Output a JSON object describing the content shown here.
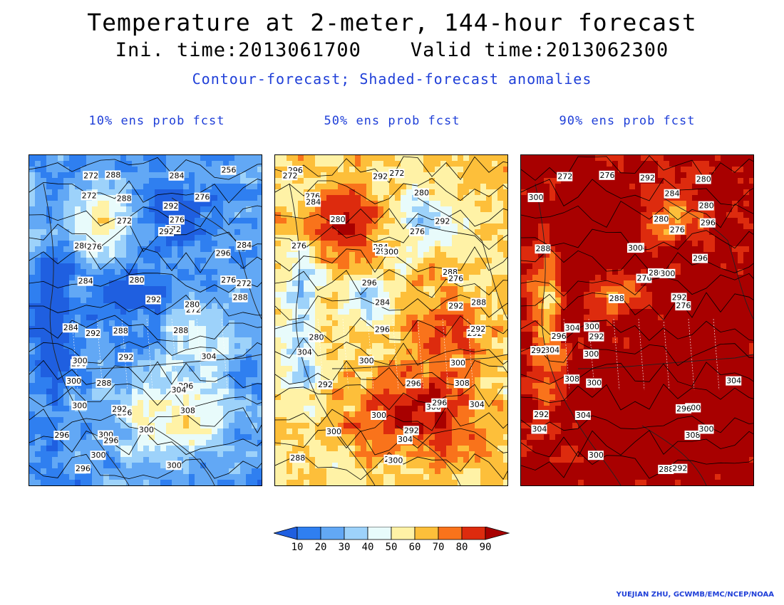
{
  "header": {
    "title": "Temperature at 2-meter, 144-hour forecast",
    "subtitle": "Ini. time:2013061700    Valid time:2013062300",
    "description": "Contour-forecast; Shaded-forecast anomalies"
  },
  "panels": [
    {
      "label": "10% ens prob fcst",
      "shading_bias": -0.28,
      "contour_labels": [
        "288",
        "272",
        "256",
        "284",
        "272",
        "292",
        "288",
        "276",
        "272",
        "276",
        "272",
        "292",
        "296",
        "280",
        "276",
        "284",
        "272",
        "276",
        "284",
        "280",
        "288",
        "292",
        "272",
        "280",
        "288",
        "284",
        "288",
        "292",
        "296",
        "292",
        "300",
        "304",
        "296",
        "300",
        "304",
        "288",
        "300",
        "308",
        "296",
        "292",
        "300",
        "300",
        "296",
        "296",
        "296",
        "300",
        "300"
      ]
    },
    {
      "label": "50% ens prob fcst",
      "shading_bias": 0.1,
      "contour_labels": [
        "292",
        "296",
        "272",
        "272",
        "276",
        "280",
        "284",
        "280",
        "276",
        "292",
        "284",
        "276",
        "296",
        "300",
        "296",
        "288",
        "276",
        "292",
        "284",
        "288",
        "280",
        "292",
        "292",
        "296",
        "300",
        "304",
        "300",
        "296",
        "292",
        "308",
        "300",
        "304",
        "296",
        "300",
        "300",
        "304",
        "292",
        "296",
        "300",
        "288"
      ]
    },
    {
      "label": "90% ens prob fcst",
      "shading_bias": 0.45,
      "contour_labels": [
        "292",
        "280",
        "272",
        "276",
        "300",
        "284",
        "280",
        "276",
        "280",
        "296",
        "304",
        "300",
        "288",
        "296",
        "276",
        "280",
        "300",
        "276",
        "292",
        "288",
        "292",
        "300",
        "296",
        "304",
        "304",
        "292",
        "300",
        "304",
        "308",
        "300",
        "304",
        "292",
        "300",
        "296",
        "308",
        "300",
        "304",
        "300",
        "288",
        "292"
      ]
    }
  ],
  "colorbar": {
    "labels": [
      "10",
      "20",
      "30",
      "40",
      "50",
      "60",
      "70",
      "80",
      "90"
    ],
    "colors": [
      "#1f5fe0",
      "#2f7ff0",
      "#62a8f5",
      "#9dd2fa",
      "#e8fbfb",
      "#fff2a6",
      "#fdbf3a",
      "#f9731b",
      "#dd2b0e",
      "#a80000"
    ]
  },
  "credit": "YUEJIAN ZHU, GCWMB/EMC/NCEP/NOAA"
}
